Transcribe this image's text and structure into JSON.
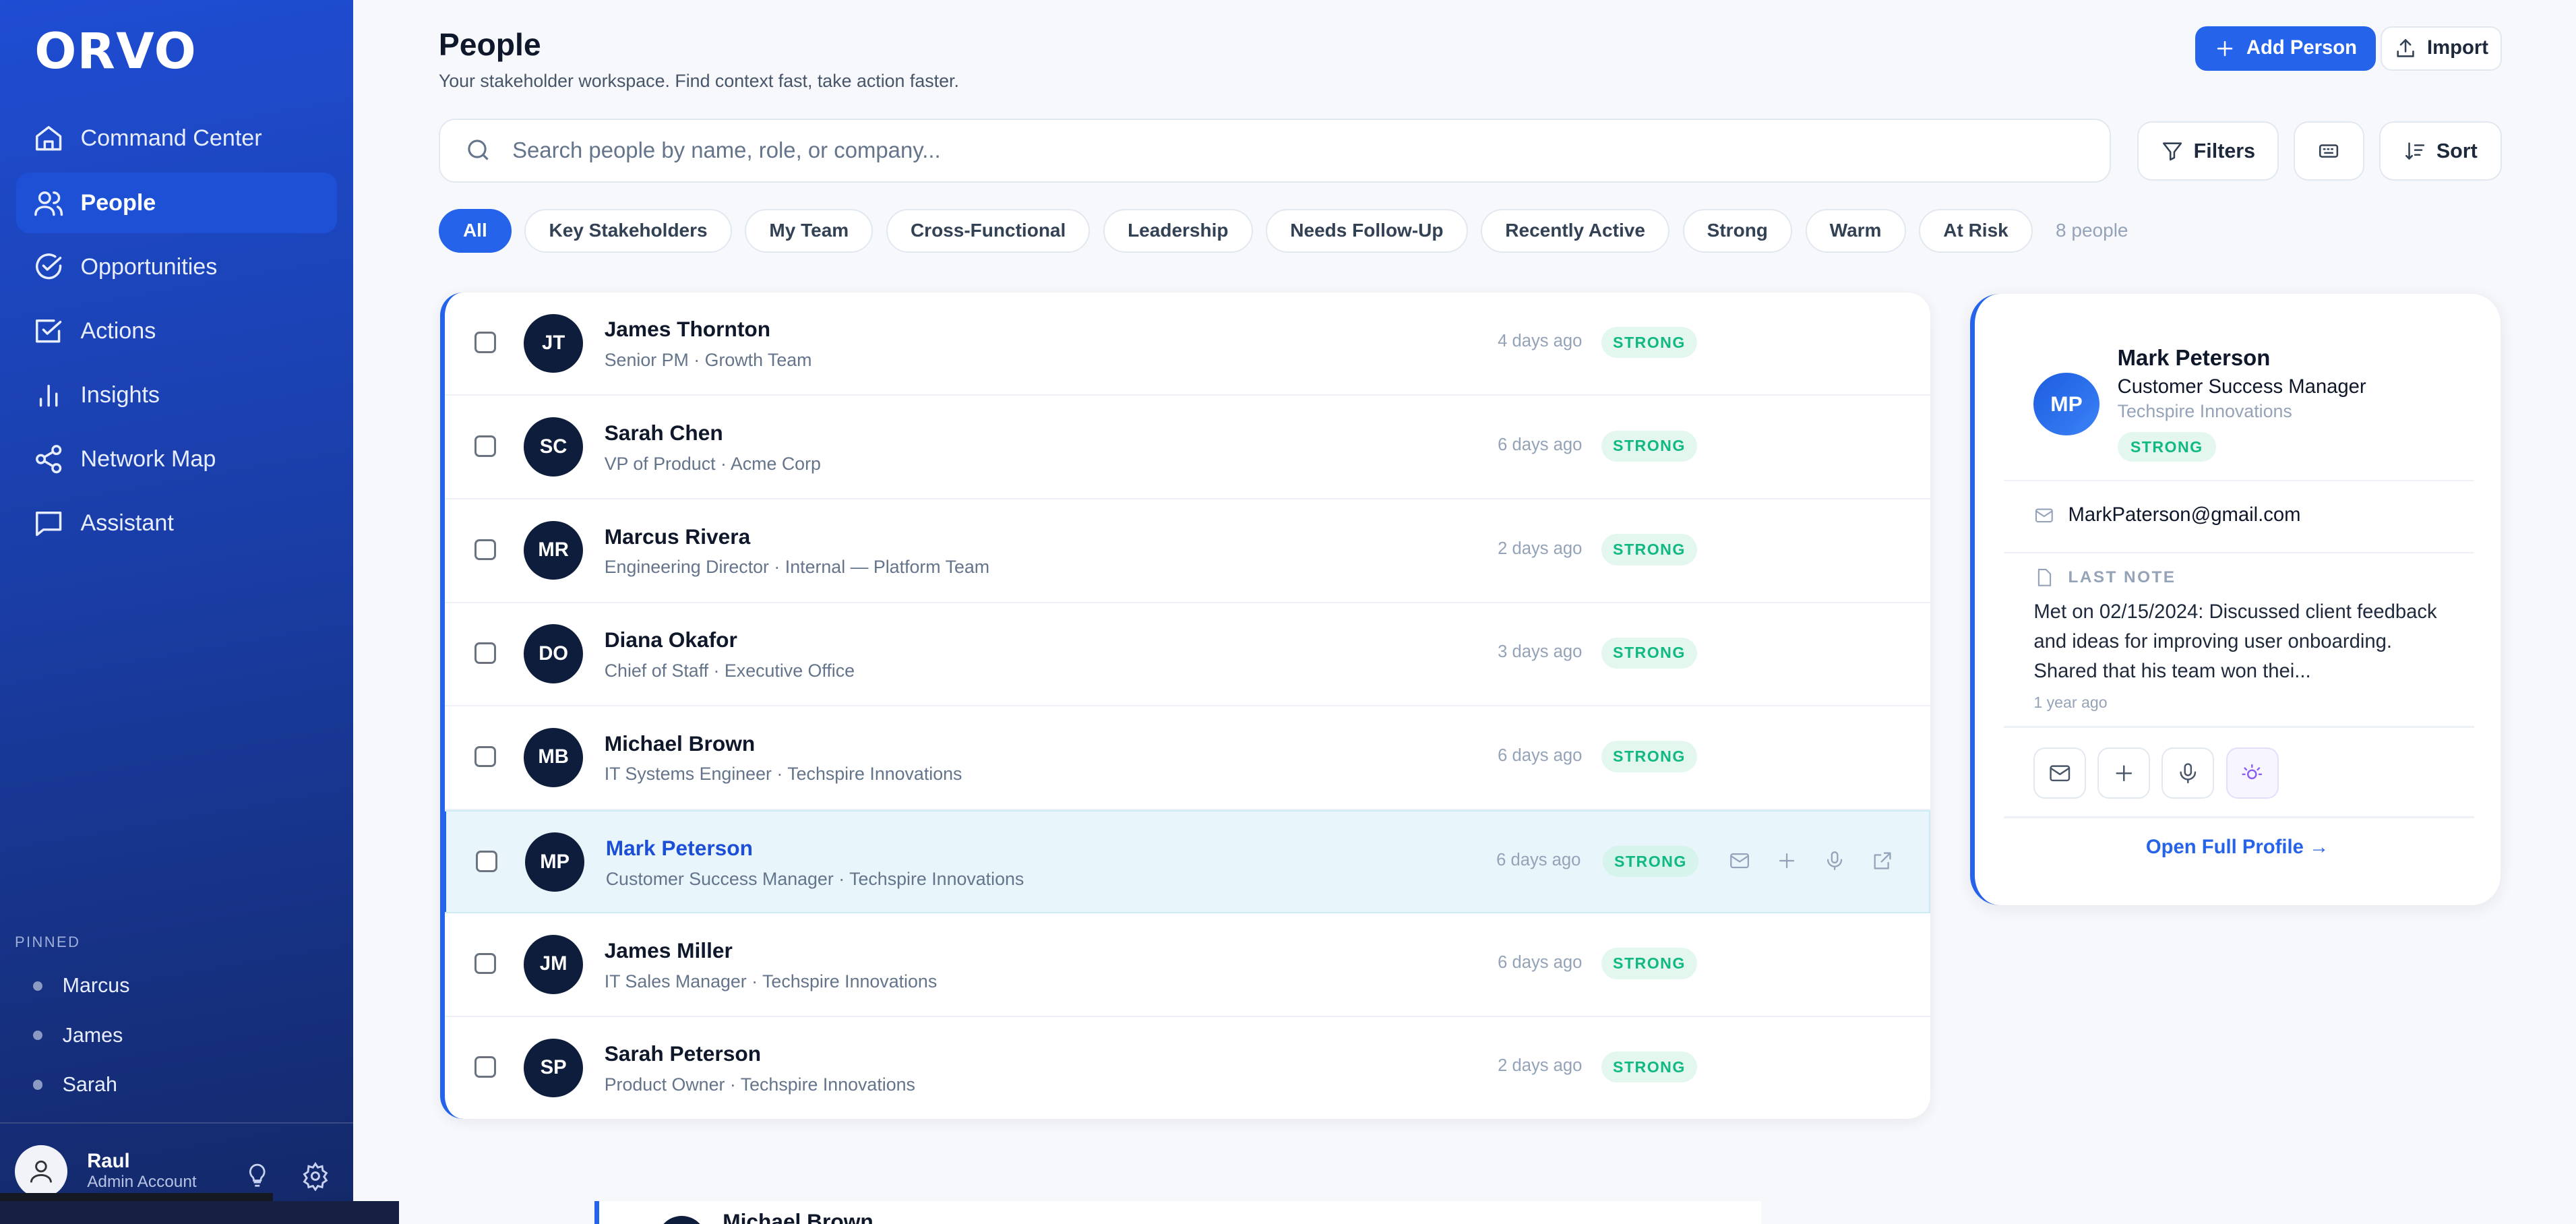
{
  "app": {
    "logo": "ORVO"
  },
  "sidebar": {
    "items": [
      {
        "label": "Command Center",
        "icon": "home-icon"
      },
      {
        "label": "People",
        "icon": "users-icon",
        "active": true
      },
      {
        "label": "Opportunities",
        "icon": "circle-check-icon"
      },
      {
        "label": "Actions",
        "icon": "square-check-icon"
      },
      {
        "label": "Insights",
        "icon": "bar-chart-icon"
      },
      {
        "label": "Network Map",
        "icon": "share-icon"
      },
      {
        "label": "Assistant",
        "icon": "message-icon"
      }
    ],
    "pinned_label": "PINNED",
    "pinned": [
      "Marcus",
      "James",
      "Sarah"
    ],
    "user": {
      "name": "Raul",
      "role": "Admin Account"
    }
  },
  "header": {
    "title": "People",
    "subtitle": "Your stakeholder workspace. Find context fast, take action faster.",
    "add_label": "Add Person",
    "import_label": "Import"
  },
  "search": {
    "placeholder": "Search people by name, role, or company...",
    "value": ""
  },
  "toolbar": {
    "filters_label": "Filters",
    "sort_label": "Sort"
  },
  "chips": [
    "All",
    "Key Stakeholders",
    "My Team",
    "Cross-Functional",
    "Leadership",
    "Needs Follow-Up",
    "Recently Active",
    "Strong",
    "Warm",
    "At Risk"
  ],
  "count": "8 people",
  "people": [
    {
      "initials": "JT",
      "name": "James Thornton",
      "meta": "Senior PM · Growth Team",
      "time": "4 days ago",
      "status": "STRONG"
    },
    {
      "initials": "SC",
      "name": "Sarah Chen",
      "meta": "VP of Product · Acme Corp",
      "time": "6 days ago",
      "status": "STRONG"
    },
    {
      "initials": "MR",
      "name": "Marcus Rivera",
      "meta": "Engineering Director · Internal — Platform Team",
      "time": "2 days ago",
      "status": "STRONG"
    },
    {
      "initials": "DO",
      "name": "Diana Okafor",
      "meta": "Chief of Staff · Executive Office",
      "time": "3 days ago",
      "status": "STRONG"
    },
    {
      "initials": "MB",
      "name": "Michael Brown",
      "meta": "IT Systems Engineer · Techspire Innovations",
      "time": "6 days ago",
      "status": "STRONG"
    },
    {
      "initials": "MP",
      "name": "Mark Peterson",
      "meta": "Customer Success Manager · Techspire Innovations",
      "time": "6 days ago",
      "status": "STRONG",
      "selected": true
    },
    {
      "initials": "JM",
      "name": "James Miller",
      "meta": "IT Sales Manager · Techspire Innovations",
      "time": "6 days ago",
      "status": "STRONG"
    },
    {
      "initials": "SP",
      "name": "Sarah Peterson",
      "meta": "Product Owner · Techspire Innovations",
      "time": "2 days ago",
      "status": "STRONG"
    }
  ],
  "detail": {
    "initials": "MP",
    "name": "Mark Peterson",
    "role": "Customer Success Manager",
    "company": "Techspire Innovations",
    "status": "STRONG",
    "email": "MarkPaterson@gmail.com",
    "note_label": "LAST NOTE",
    "note": "Met on 02/15/2024: Discussed client feedback and ideas for improving user onboarding. Shared that his team won thei...",
    "note_age": "1 year ago",
    "open_label": "Open Full Profile →"
  },
  "drag_ghost": {
    "name": "Michael Brown"
  },
  "colors": {
    "accent": "#2563eb",
    "strong": "#10b981",
    "sidebar": "#1e4bd0",
    "avatar": "#0f1d3d"
  }
}
